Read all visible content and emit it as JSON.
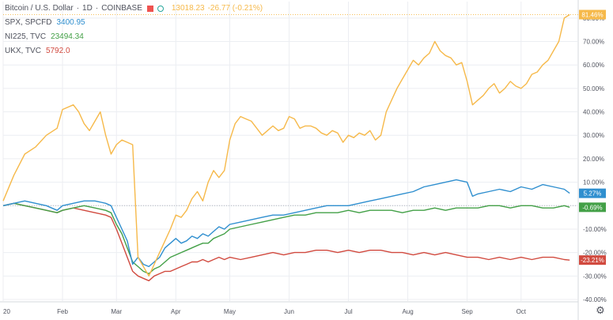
{
  "legend": {
    "main": {
      "symbol": "Bitcoin / U.S. Dollar",
      "interval": "1D",
      "exchange": "COINBASE",
      "price": "13018.23",
      "change": "-26.77 (-0.21%)"
    },
    "compare": [
      {
        "symbol": "SPX, SPCFD",
        "value": "3400.95"
      },
      {
        "symbol": "NI225, TVC",
        "value": "23494.34"
      },
      {
        "symbol": "UKX, TVC",
        "value": "5792.0"
      }
    ]
  },
  "chart_data": {
    "type": "line",
    "x_unit": "trading days since Jan 20",
    "ylim": [
      -40,
      85
    ],
    "y_ticks": [
      80,
      70,
      60,
      50,
      40,
      30,
      20,
      10,
      0,
      -10,
      -20,
      -30,
      -40
    ],
    "y_tick_labels": [
      "80.00%",
      "70.00%",
      "60.00%",
      "50.00%",
      "40.00%",
      "30.00%",
      "20.00%",
      "10.00%",
      "0.00%",
      "-10.00%",
      "-20.00%",
      "-30.00%",
      "-40.00%"
    ],
    "x_ticks": [
      {
        "label": "20",
        "day": 0
      },
      {
        "label": "Feb",
        "day": 11
      },
      {
        "label": "Mar",
        "day": 21
      },
      {
        "label": "Apr",
        "day": 32
      },
      {
        "label": "May",
        "day": 42
      },
      {
        "label": "Jun",
        "day": 53
      },
      {
        "label": "Jul",
        "day": 64
      },
      {
        "label": "Aug",
        "day": 75
      },
      {
        "label": "Sep",
        "day": 86
      },
      {
        "label": "Oct",
        "day": 96
      }
    ],
    "x_max": 106,
    "series": [
      {
        "name": "Bitcoin / U.S. Dollar",
        "color": "#f6b94a",
        "last_label": "81.46%",
        "points": [
          [
            0,
            2
          ],
          [
            2,
            13
          ],
          [
            4,
            22
          ],
          [
            6,
            25
          ],
          [
            8,
            30
          ],
          [
            10,
            33
          ],
          [
            11,
            41
          ],
          [
            13,
            43
          ],
          [
            14,
            40
          ],
          [
            15,
            35
          ],
          [
            16,
            32
          ],
          [
            17,
            36
          ],
          [
            18,
            40
          ],
          [
            19,
            30
          ],
          [
            20,
            22
          ],
          [
            21,
            26
          ],
          [
            22,
            28
          ],
          [
            23,
            27
          ],
          [
            24,
            26
          ],
          [
            25,
            -22
          ],
          [
            26,
            -26
          ],
          [
            27,
            -30
          ],
          [
            28,
            -25
          ],
          [
            29,
            -20
          ],
          [
            30,
            -15
          ],
          [
            31,
            -10
          ],
          [
            32,
            -4
          ],
          [
            33,
            -5
          ],
          [
            34,
            -2
          ],
          [
            35,
            3
          ],
          [
            36,
            6
          ],
          [
            37,
            2
          ],
          [
            38,
            10
          ],
          [
            39,
            15
          ],
          [
            40,
            12
          ],
          [
            41,
            15
          ],
          [
            42,
            28
          ],
          [
            43,
            35
          ],
          [
            44,
            38
          ],
          [
            45,
            37
          ],
          [
            46,
            36
          ],
          [
            47,
            33
          ],
          [
            48,
            30
          ],
          [
            49,
            32
          ],
          [
            50,
            34
          ],
          [
            51,
            32
          ],
          [
            52,
            33
          ],
          [
            53,
            38
          ],
          [
            54,
            37
          ],
          [
            55,
            33
          ],
          [
            56,
            34
          ],
          [
            57,
            34
          ],
          [
            58,
            33
          ],
          [
            59,
            31
          ],
          [
            60,
            30
          ],
          [
            61,
            32
          ],
          [
            62,
            31
          ],
          [
            63,
            27
          ],
          [
            64,
            30
          ],
          [
            65,
            29
          ],
          [
            66,
            31
          ],
          [
            67,
            30
          ],
          [
            68,
            32
          ],
          [
            69,
            28
          ],
          [
            70,
            30
          ],
          [
            71,
            40
          ],
          [
            72,
            45
          ],
          [
            73,
            50
          ],
          [
            74,
            54
          ],
          [
            75,
            58
          ],
          [
            76,
            62
          ],
          [
            77,
            60
          ],
          [
            78,
            63
          ],
          [
            79,
            65
          ],
          [
            80,
            70
          ],
          [
            81,
            66
          ],
          [
            82,
            64
          ],
          [
            83,
            63
          ],
          [
            84,
            60
          ],
          [
            85,
            61
          ],
          [
            86,
            53
          ],
          [
            87,
            43
          ],
          [
            88,
            45
          ],
          [
            89,
            47
          ],
          [
            90,
            50
          ],
          [
            91,
            52
          ],
          [
            92,
            48
          ],
          [
            93,
            50
          ],
          [
            94,
            53
          ],
          [
            95,
            51
          ],
          [
            96,
            50
          ],
          [
            97,
            52
          ],
          [
            98,
            56
          ],
          [
            99,
            57
          ],
          [
            100,
            60
          ],
          [
            101,
            62
          ],
          [
            102,
            66
          ],
          [
            103,
            70
          ],
          [
            104,
            80
          ],
          [
            105,
            81.46
          ]
        ]
      },
      {
        "name": "SPX, SPCFD",
        "color": "#2f8fcf",
        "last_label": "5.27%",
        "points": [
          [
            0,
            0
          ],
          [
            2,
            1
          ],
          [
            4,
            2
          ],
          [
            6,
            1
          ],
          [
            8,
            0
          ],
          [
            10,
            -2
          ],
          [
            11,
            0
          ],
          [
            13,
            1
          ],
          [
            15,
            2
          ],
          [
            17,
            2
          ],
          [
            19,
            1
          ],
          [
            20,
            0
          ],
          [
            21,
            -5
          ],
          [
            22,
            -10
          ],
          [
            23,
            -15
          ],
          [
            24,
            -25
          ],
          [
            25,
            -22
          ],
          [
            26,
            -25
          ],
          [
            27,
            -26
          ],
          [
            28,
            -24
          ],
          [
            29,
            -22
          ],
          [
            30,
            -18
          ],
          [
            31,
            -16
          ],
          [
            32,
            -14
          ],
          [
            33,
            -16
          ],
          [
            34,
            -15
          ],
          [
            35,
            -13
          ],
          [
            36,
            -14
          ],
          [
            37,
            -12
          ],
          [
            38,
            -13
          ],
          [
            39,
            -11
          ],
          [
            40,
            -9
          ],
          [
            41,
            -10
          ],
          [
            42,
            -8
          ],
          [
            44,
            -7
          ],
          [
            46,
            -6
          ],
          [
            48,
            -5
          ],
          [
            50,
            -4
          ],
          [
            52,
            -4
          ],
          [
            54,
            -3
          ],
          [
            56,
            -2
          ],
          [
            58,
            -1
          ],
          [
            60,
            0
          ],
          [
            62,
            0
          ],
          [
            64,
            0
          ],
          [
            66,
            1
          ],
          [
            68,
            2
          ],
          [
            70,
            3
          ],
          [
            72,
            4
          ],
          [
            74,
            5
          ],
          [
            76,
            6
          ],
          [
            78,
            8
          ],
          [
            80,
            9
          ],
          [
            82,
            10
          ],
          [
            84,
            11
          ],
          [
            86,
            10
          ],
          [
            87,
            4
          ],
          [
            88,
            5
          ],
          [
            90,
            6
          ],
          [
            92,
            7
          ],
          [
            94,
            6
          ],
          [
            96,
            8
          ],
          [
            98,
            7
          ],
          [
            100,
            9
          ],
          [
            102,
            8
          ],
          [
            104,
            7
          ],
          [
            105,
            5.27
          ]
        ]
      },
      {
        "name": "NI225, TVC",
        "color": "#43a047",
        "last_label": "-0.69%",
        "points": [
          [
            0,
            0
          ],
          [
            2,
            1
          ],
          [
            4,
            0
          ],
          [
            6,
            -1
          ],
          [
            8,
            -2
          ],
          [
            10,
            -3
          ],
          [
            11,
            -2
          ],
          [
            13,
            -1
          ],
          [
            15,
            0
          ],
          [
            17,
            -1
          ],
          [
            19,
            -2
          ],
          [
            20,
            -3
          ],
          [
            21,
            -8
          ],
          [
            22,
            -12
          ],
          [
            23,
            -18
          ],
          [
            24,
            -24
          ],
          [
            25,
            -26
          ],
          [
            26,
            -28
          ],
          [
            27,
            -29
          ],
          [
            28,
            -27
          ],
          [
            29,
            -26
          ],
          [
            30,
            -24
          ],
          [
            31,
            -22
          ],
          [
            32,
            -21
          ],
          [
            33,
            -20
          ],
          [
            34,
            -19
          ],
          [
            35,
            -18
          ],
          [
            36,
            -17
          ],
          [
            37,
            -16
          ],
          [
            38,
            -16
          ],
          [
            39,
            -14
          ],
          [
            40,
            -13
          ],
          [
            41,
            -12
          ],
          [
            42,
            -10
          ],
          [
            44,
            -9
          ],
          [
            46,
            -8
          ],
          [
            48,
            -7
          ],
          [
            50,
            -6
          ],
          [
            52,
            -5
          ],
          [
            54,
            -4
          ],
          [
            56,
            -4
          ],
          [
            58,
            -3
          ],
          [
            60,
            -3
          ],
          [
            62,
            -3
          ],
          [
            64,
            -2
          ],
          [
            66,
            -3
          ],
          [
            68,
            -2
          ],
          [
            70,
            -2
          ],
          [
            72,
            -2
          ],
          [
            74,
            -3
          ],
          [
            76,
            -2
          ],
          [
            78,
            -2
          ],
          [
            80,
            -1
          ],
          [
            82,
            -2
          ],
          [
            84,
            -1
          ],
          [
            86,
            -1
          ],
          [
            88,
            -1
          ],
          [
            90,
            0
          ],
          [
            92,
            0
          ],
          [
            94,
            -1
          ],
          [
            96,
            0
          ],
          [
            98,
            0
          ],
          [
            100,
            -1
          ],
          [
            102,
            -1
          ],
          [
            104,
            0
          ],
          [
            105,
            -0.69
          ]
        ]
      },
      {
        "name": "UKX, TVC",
        "color": "#d14a3f",
        "last_label": "-23.21%",
        "points": [
          [
            0,
            0
          ],
          [
            2,
            1
          ],
          [
            4,
            0
          ],
          [
            6,
            -1
          ],
          [
            8,
            -2
          ],
          [
            10,
            -3
          ],
          [
            11,
            -2
          ],
          [
            13,
            -1
          ],
          [
            15,
            -2
          ],
          [
            17,
            -3
          ],
          [
            19,
            -4
          ],
          [
            20,
            -5
          ],
          [
            21,
            -10
          ],
          [
            22,
            -16
          ],
          [
            23,
            -22
          ],
          [
            24,
            -28
          ],
          [
            25,
            -30
          ],
          [
            26,
            -31
          ],
          [
            27,
            -32
          ],
          [
            28,
            -30
          ],
          [
            29,
            -29
          ],
          [
            30,
            -28
          ],
          [
            31,
            -28
          ],
          [
            32,
            -27
          ],
          [
            33,
            -26
          ],
          [
            34,
            -25
          ],
          [
            35,
            -24
          ],
          [
            36,
            -24
          ],
          [
            37,
            -23
          ],
          [
            38,
            -24
          ],
          [
            39,
            -23
          ],
          [
            40,
            -22
          ],
          [
            41,
            -23
          ],
          [
            42,
            -22
          ],
          [
            44,
            -23
          ],
          [
            46,
            -22
          ],
          [
            48,
            -21
          ],
          [
            50,
            -20
          ],
          [
            52,
            -21
          ],
          [
            54,
            -20
          ],
          [
            56,
            -20
          ],
          [
            58,
            -19
          ],
          [
            60,
            -19
          ],
          [
            62,
            -20
          ],
          [
            64,
            -19
          ],
          [
            66,
            -20
          ],
          [
            68,
            -19
          ],
          [
            70,
            -19
          ],
          [
            72,
            -20
          ],
          [
            74,
            -20
          ],
          [
            76,
            -21
          ],
          [
            78,
            -20
          ],
          [
            80,
            -21
          ],
          [
            82,
            -20
          ],
          [
            84,
            -21
          ],
          [
            86,
            -22
          ],
          [
            88,
            -22
          ],
          [
            90,
            -23
          ],
          [
            92,
            -22
          ],
          [
            94,
            -23
          ],
          [
            96,
            -22
          ],
          [
            98,
            -23
          ],
          [
            100,
            -22
          ],
          [
            102,
            -22
          ],
          [
            104,
            -23
          ],
          [
            105,
            -23.21
          ]
        ]
      }
    ]
  }
}
